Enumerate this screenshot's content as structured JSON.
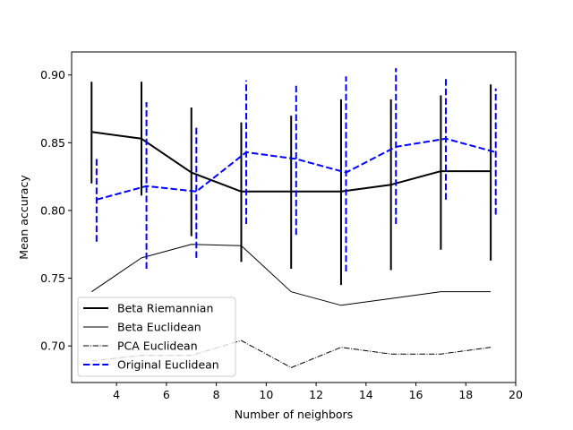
{
  "chart_data": {
    "type": "line",
    "title": "",
    "xlabel": "Number of neighbors",
    "ylabel": "Mean accuracy",
    "xlim": [
      2.2,
      20.0
    ],
    "ylim": [
      0.673,
      0.917
    ],
    "xticks": [
      4,
      6,
      8,
      10,
      12,
      14,
      16,
      18,
      20
    ],
    "xtick_labels": [
      "4",
      "6",
      "8",
      "10",
      "12",
      "14",
      "16",
      "18",
      "20"
    ],
    "yticks": [
      0.7,
      0.75,
      0.8,
      0.85,
      0.9
    ],
    "ytick_labels": [
      "0.70",
      "0.75",
      "0.80",
      "0.85",
      "0.90"
    ],
    "grid": false,
    "legend_position": "lower-left",
    "series": [
      {
        "name": "Beta Riemannian",
        "color": "#000000",
        "style": "solid",
        "width": 2,
        "x": [
          3,
          5,
          7,
          9,
          11,
          13,
          15,
          17,
          19
        ],
        "y": [
          0.858,
          0.853,
          0.828,
          0.814,
          0.814,
          0.814,
          0.819,
          0.829,
          0.829
        ],
        "err_low": [
          0.82,
          0.811,
          0.781,
          0.762,
          0.757,
          0.745,
          0.756,
          0.771,
          0.763
        ],
        "err_high": [
          0.895,
          0.895,
          0.876,
          0.865,
          0.87,
          0.882,
          0.882,
          0.885,
          0.893
        ]
      },
      {
        "name": "Beta Euclidean",
        "color": "#000000",
        "style": "solid",
        "width": 1,
        "x": [
          3,
          5,
          7,
          9,
          11,
          13,
          15,
          17,
          19
        ],
        "y": [
          0.74,
          0.765,
          0.775,
          0.774,
          0.74,
          0.73,
          0.735,
          0.74,
          0.74
        ]
      },
      {
        "name": "PCA Euclidean",
        "color": "#000000",
        "style": "dashdot",
        "width": 1,
        "x": [
          3,
          5,
          7,
          9,
          11,
          13,
          15,
          17,
          19
        ],
        "y": [
          0.689,
          0.693,
          0.693,
          0.704,
          0.684,
          0.699,
          0.694,
          0.694,
          0.699
        ]
      },
      {
        "name": "Original Euclidean",
        "color": "#0000ff",
        "style": "dashed",
        "width": 2,
        "x": [
          3.2,
          5.2,
          7.2,
          9.2,
          11.2,
          13.2,
          15.2,
          17.2,
          19.2
        ],
        "y": [
          0.808,
          0.818,
          0.814,
          0.843,
          0.838,
          0.828,
          0.847,
          0.853,
          0.843
        ],
        "err_low": [
          0.777,
          0.757,
          0.765,
          0.79,
          0.782,
          0.755,
          0.79,
          0.808,
          0.797
        ],
        "err_high": [
          0.84,
          0.88,
          0.862,
          0.896,
          0.893,
          0.899,
          0.905,
          0.898,
          0.89
        ]
      }
    ]
  }
}
